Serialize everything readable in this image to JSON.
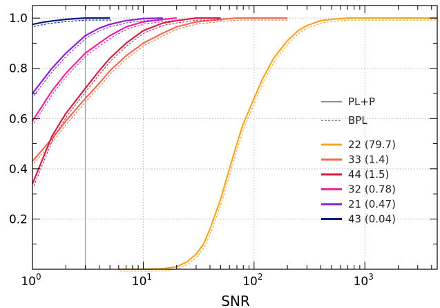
{
  "chart_data": {
    "type": "line",
    "title": "",
    "xlabel": "SNR",
    "ylabel": "",
    "xscale": "log",
    "xlim": [
      1,
      4500
    ],
    "ylim": [
      0,
      1.05
    ],
    "grid": true,
    "x_tick_labels": [
      {
        "base": "10",
        "exp": "0",
        "value": 1
      },
      {
        "base": "10",
        "exp": "1",
        "value": 10
      },
      {
        "base": "10",
        "exp": "2",
        "value": 100
      },
      {
        "base": "10",
        "exp": "3",
        "value": 1000
      }
    ],
    "y_ticks": [
      "0.2",
      "0.4",
      "0.6",
      "0.8",
      "1.0"
    ],
    "y_tick_values": [
      0.2,
      0.4,
      0.6,
      0.8,
      1.0
    ],
    "threshold_line": {
      "x": 3,
      "color": "#a0a0a0"
    },
    "legend_position": "right",
    "style_legend": [
      {
        "label": "PL+P",
        "style": "solid",
        "color": "#909090"
      },
      {
        "label": "BPL",
        "style": "dashed",
        "color": "#333333"
      }
    ],
    "series": [
      {
        "name": "22 (79.7)",
        "color": "#f5a623",
        "x": [
          6,
          10,
          15,
          20,
          25,
          30,
          35,
          40,
          50,
          60,
          70,
          80,
          100,
          120,
          150,
          200,
          250,
          300,
          400,
          500,
          700,
          1000,
          4500
        ],
        "y": [
          0.0,
          0.0,
          0.002,
          0.01,
          0.03,
          0.06,
          0.1,
          0.16,
          0.28,
          0.4,
          0.5,
          0.58,
          0.68,
          0.76,
          0.84,
          0.91,
          0.95,
          0.97,
          0.99,
          0.995,
          1.0,
          1.0,
          1.0
        ]
      },
      {
        "name": "33 (1.4)",
        "color": "#f26b55",
        "x": [
          1,
          1.5,
          2,
          3,
          4,
          5,
          7,
          10,
          15,
          20,
          30,
          50,
          70,
          100,
          200
        ],
        "y": [
          0.43,
          0.52,
          0.59,
          0.68,
          0.74,
          0.79,
          0.85,
          0.9,
          0.94,
          0.965,
          0.985,
          0.995,
          1.0,
          1.0,
          1.0
        ]
      },
      {
        "name": "44 (1.5)",
        "color": "#d41e44",
        "x": [
          1,
          1.5,
          2,
          3,
          4,
          5,
          7,
          10,
          15,
          20,
          30,
          50
        ],
        "y": [
          0.34,
          0.53,
          0.62,
          0.72,
          0.79,
          0.84,
          0.9,
          0.95,
          0.98,
          0.99,
          1.0,
          1.0
        ]
      },
      {
        "name": "32 (0.78)",
        "color": "#f0229a",
        "x": [
          1,
          1.5,
          2,
          3,
          4,
          5,
          7,
          10,
          15,
          20
        ],
        "y": [
          0.59,
          0.71,
          0.78,
          0.86,
          0.9,
          0.93,
          0.965,
          0.985,
          0.995,
          1.0
        ]
      },
      {
        "name": "21 (0.47)",
        "color": "#8b1fd4",
        "x": [
          1,
          1.5,
          2,
          3,
          4,
          5,
          7,
          10,
          15
        ],
        "y": [
          0.7,
          0.8,
          0.86,
          0.93,
          0.96,
          0.975,
          0.99,
          0.998,
          1.0
        ]
      },
      {
        "name": "43 (0.04)",
        "color": "#0a1a7a",
        "x": [
          1,
          1.3,
          1.6,
          2,
          2.5,
          3,
          4,
          5
        ],
        "y": [
          0.975,
          0.985,
          0.99,
          0.995,
          0.998,
          1.0,
          1.0,
          1.0
        ]
      }
    ]
  }
}
